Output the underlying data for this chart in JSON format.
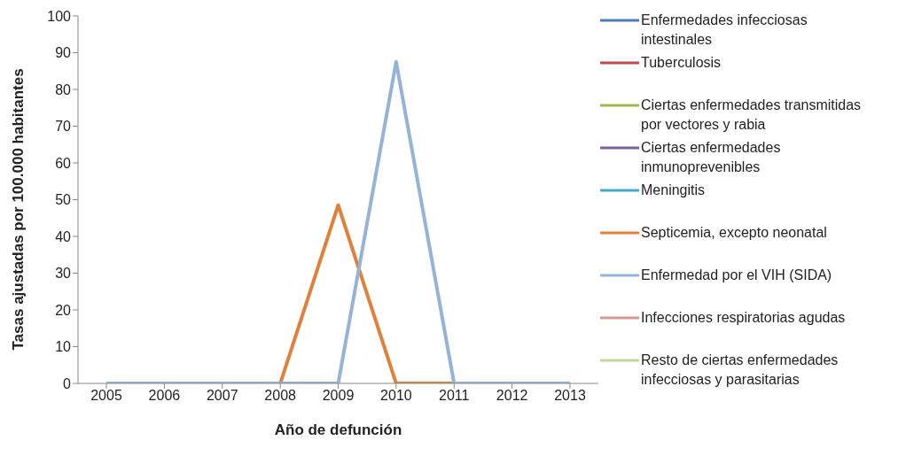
{
  "chart_data": {
    "type": "line",
    "xlabel": "Año de defunción",
    "ylabel": "Tasas ajustadas por 100.000 habitantes",
    "categories": [
      "2005",
      "2006",
      "2007",
      "2008",
      "2009",
      "2010",
      "2011",
      "2012",
      "2013"
    ],
    "ylim": [
      0,
      100
    ],
    "yticks": [
      0,
      10,
      20,
      30,
      40,
      50,
      60,
      70,
      80,
      90,
      100
    ],
    "legend": "right",
    "marker": "none",
    "line_style": "solid",
    "series": [
      {
        "name": "Enfermedades infecciosas intestinales",
        "color": "#4a7ebb",
        "values": [
          null,
          null,
          null,
          null,
          null,
          null,
          null,
          null,
          null
        ]
      },
      {
        "name": "Tuberculosis",
        "color": "#be4b48",
        "values": [
          null,
          null,
          null,
          null,
          null,
          null,
          null,
          null,
          null
        ]
      },
      {
        "name": "Ciertas enfermedades transmitidas por vectores y rabia",
        "color": "#98b954",
        "values": [
          null,
          null,
          null,
          null,
          null,
          null,
          null,
          null,
          null
        ]
      },
      {
        "name": "Ciertas enfermedades inmunoprevenibles",
        "color": "#7d60a0",
        "values": [
          null,
          null,
          null,
          null,
          null,
          null,
          null,
          null,
          null
        ]
      },
      {
        "name": "Meningitis",
        "color": "#46aac5",
        "values": [
          null,
          null,
          null,
          null,
          null,
          null,
          null,
          null,
          null
        ]
      },
      {
        "name": "Septicemia, excepto neonatal",
        "color": "#e0803a",
        "values": [
          null,
          null,
          null,
          0,
          48.5,
          0,
          0,
          null,
          null
        ]
      },
      {
        "name": "Enfermedad por el VIH (SIDA)",
        "color": "#95b3d7",
        "values": [
          0,
          0,
          0,
          0,
          0,
          87.5,
          0,
          0,
          0
        ]
      },
      {
        "name": "Infecciones respiratorias agudas",
        "color": "#d99694",
        "values": [
          null,
          null,
          null,
          null,
          null,
          null,
          null,
          null,
          null
        ]
      },
      {
        "name": "Resto de ciertas enfermedades infecciosas y parasitarias",
        "color": "#c3d69b",
        "values": [
          null,
          null,
          null,
          null,
          null,
          null,
          null,
          null,
          null
        ]
      }
    ]
  }
}
